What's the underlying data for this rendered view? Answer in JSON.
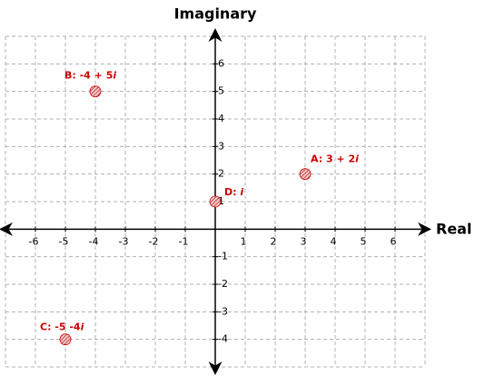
{
  "chart_data": {
    "type": "scatter",
    "x_label": "Real",
    "y_label": "Imaginary",
    "x": [
      3,
      -4,
      -5,
      0
    ],
    "series": [
      {
        "color": "#cc0000",
        "values": [
          2,
          5,
          -4,
          1
        ],
        "labels": [
          "A: 3 + 2i",
          "B: -4 + 5i",
          "C: -5 -4i",
          "D: i"
        ]
      }
    ],
    "xlim": [
      -7,
      7
    ],
    "ylim": [
      -5,
      7
    ],
    "xticks": [
      -6,
      -5,
      -4,
      -3,
      -2,
      -1,
      1,
      2,
      3,
      4,
      5,
      6
    ],
    "yticks": [
      -4,
      -3,
      -2,
      -1,
      1,
      2,
      3,
      4,
      5,
      6
    ],
    "grid": true
  }
}
